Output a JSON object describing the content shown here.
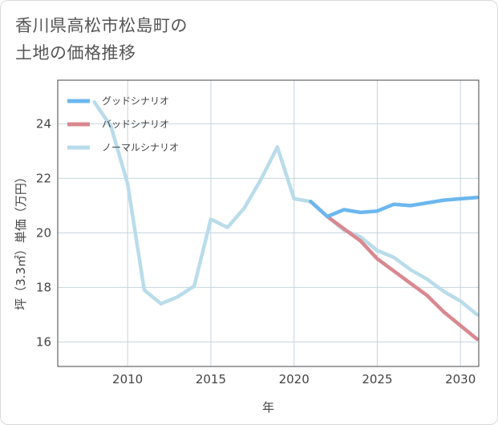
{
  "title_lines": [
    "香川県高松市松島町の",
    "土地の価格推移"
  ],
  "chart_data": {
    "type": "line",
    "xlabel": "年",
    "ylabel": "坪（3.3㎡）単価（万円）",
    "xlim": [
      2005.8,
      2031.1
    ],
    "ylim": [
      15.1,
      25.6
    ],
    "xticks": [
      2010,
      2015,
      2020,
      2025,
      2030
    ],
    "yticks": [
      16,
      18,
      20,
      22,
      24
    ],
    "grid": true,
    "legend_position": "top-left",
    "series": [
      {
        "name": "グッドシナリオ",
        "color": "#6cb7ee",
        "x": [
          2021,
          2022,
          2023,
          2024,
          2025,
          2026,
          2027,
          2028,
          2029,
          2030,
          2031
        ],
        "y": [
          21.15,
          20.6,
          20.85,
          20.75,
          20.8,
          21.05,
          21.0,
          21.1,
          21.2,
          21.25,
          21.3
        ]
      },
      {
        "name": "バッドシナリオ",
        "color": "#d9888f",
        "x": [
          2021,
          2022,
          2023,
          2024,
          2025,
          2026,
          2027,
          2028,
          2029,
          2030,
          2031
        ],
        "y": [
          21.15,
          20.6,
          20.15,
          19.7,
          19.05,
          18.6,
          18.15,
          17.7,
          17.1,
          16.6,
          16.1
        ]
      },
      {
        "name": "ノーマルシナリオ",
        "color": "#b9dcea",
        "x": [
          2008,
          2009,
          2010,
          2011,
          2012,
          2013,
          2014,
          2015,
          2016,
          2017,
          2018,
          2019,
          2020,
          2021,
          2022,
          2023,
          2024,
          2025,
          2026,
          2027,
          2028,
          2029,
          2030,
          2031
        ],
        "y": [
          24.8,
          23.9,
          21.8,
          17.9,
          17.4,
          17.65,
          18.05,
          20.5,
          20.2,
          20.9,
          21.95,
          23.15,
          21.25,
          21.15,
          20.6,
          20.1,
          19.85,
          19.35,
          19.1,
          18.65,
          18.3,
          17.85,
          17.5,
          17.0
        ]
      }
    ]
  }
}
